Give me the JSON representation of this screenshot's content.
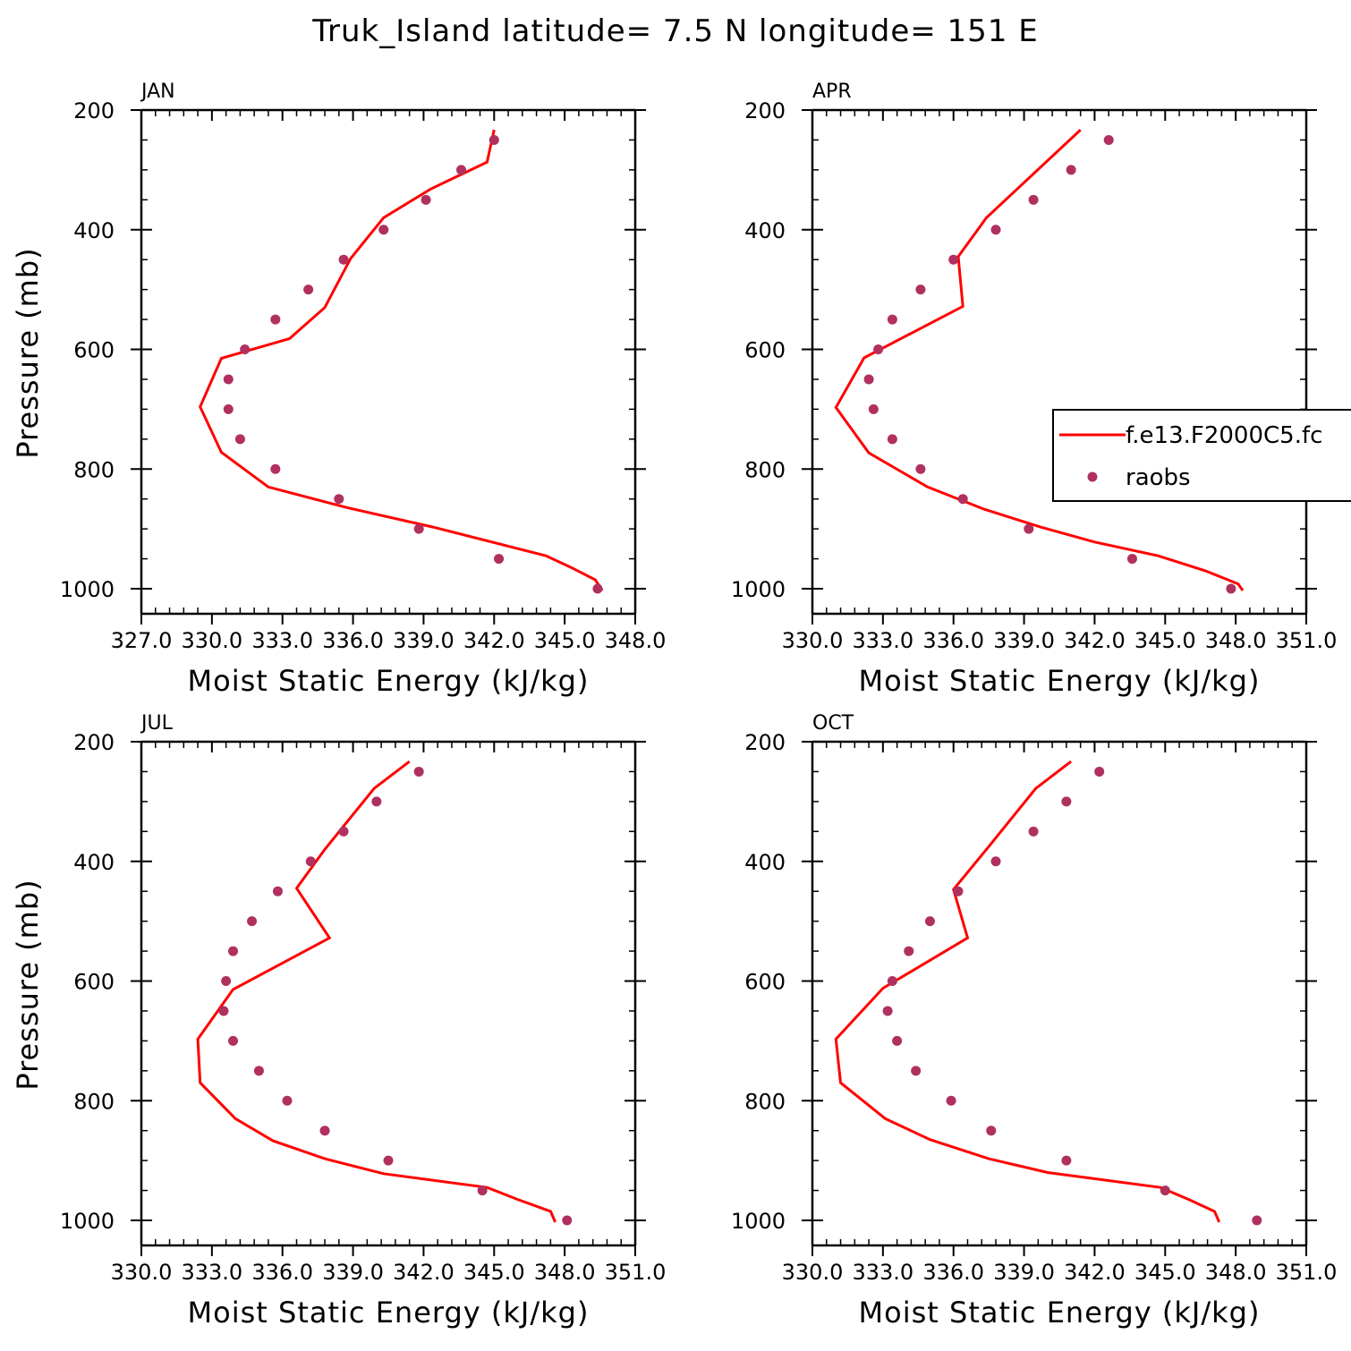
{
  "title": "Truk_Island  latitude= 7.5 N longitude= 151 E",
  "colors": {
    "model": "#ff0000",
    "obs": "#b03060",
    "axis": "#000000"
  },
  "legend": {
    "placement": "right-middle (inside APR panel, clipped)",
    "entries": [
      {
        "label": "f.e13.F2000C5.fc",
        "style": "line",
        "color": "#ff0000"
      },
      {
        "label": "raobs",
        "style": "marker",
        "color": "#b03060"
      }
    ]
  },
  "chart_data": [
    {
      "type": "line",
      "title": "JAN",
      "xlabel": "Moist Static Energy (kJ/kg)",
      "ylabel": "Pressure (mb)",
      "xlim": [
        327.0,
        348.0
      ],
      "ylim": [
        200,
        1000
      ],
      "y_inverted": true,
      "xticks": [
        327.0,
        330.0,
        333.0,
        336.0,
        339.0,
        342.0,
        345.0,
        348.0
      ],
      "xticklabels": [
        "327.0",
        "330.0",
        "333.0",
        "336.0",
        "339.0",
        "342.0",
        "345.0",
        "348.0"
      ],
      "yticks": [
        200,
        400,
        600,
        800,
        1000
      ],
      "yticklabels": [
        "200",
        "400",
        "600",
        "800",
        "1000"
      ],
      "series": [
        {
          "name": "f.e13.F2000C5.fc",
          "style": "line",
          "x": [
            342.0,
            341.7,
            339.3,
            337.3,
            335.9,
            334.8,
            333.3,
            330.4,
            329.5,
            330.4,
            332.4,
            335.8,
            339.4,
            344.2,
            345.3,
            346.3,
            346.6
          ],
          "y": [
            233,
            287,
            332,
            380,
            448,
            530,
            582,
            615,
            696,
            772,
            830,
            865,
            897,
            945,
            965,
            985,
            1003
          ]
        },
        {
          "name": "raobs",
          "style": "scatter",
          "x": [
            342.0,
            340.6,
            339.1,
            337.3,
            335.6,
            334.1,
            332.7,
            331.4,
            330.7,
            330.7,
            331.2,
            332.7,
            335.4,
            338.8,
            342.2,
            346.4
          ],
          "y": [
            250,
            300,
            350,
            400,
            450,
            500,
            550,
            600,
            650,
            700,
            750,
            800,
            850,
            900,
            950,
            1000
          ]
        }
      ]
    },
    {
      "type": "line",
      "title": "APR",
      "xlabel": "Moist Static Energy (kJ/kg)",
      "ylabel": "",
      "xlim": [
        330.0,
        351.0
      ],
      "ylim": [
        200,
        1000
      ],
      "y_inverted": true,
      "xticks": [
        330.0,
        333.0,
        336.0,
        339.0,
        342.0,
        345.0,
        348.0,
        351.0
      ],
      "xticklabels": [
        "330.0",
        "333.0",
        "336.0",
        "339.0",
        "342.0",
        "345.0",
        "348.0",
        "351.0"
      ],
      "yticks": [
        200,
        400,
        600,
        800,
        1000
      ],
      "yticklabels": [
        "200",
        "400",
        "600",
        "800",
        "1000"
      ],
      "series": [
        {
          "name": "f.e13.F2000C5.fc",
          "style": "line",
          "x": [
            341.4,
            337.4,
            336.2,
            336.4,
            332.2,
            331.0,
            332.4,
            334.9,
            337.3,
            339.7,
            342.0,
            344.7,
            346.7,
            348.1,
            348.3
          ],
          "y": [
            233,
            380,
            445,
            528,
            614,
            697,
            773,
            830,
            867,
            897,
            922,
            945,
            970,
            992,
            1003
          ]
        },
        {
          "name": "raobs",
          "style": "scatter",
          "x": [
            342.6,
            341.0,
            339.4,
            337.8,
            336.0,
            334.6,
            333.4,
            332.8,
            332.4,
            332.6,
            333.4,
            334.6,
            336.4,
            339.2,
            343.6,
            347.8
          ],
          "y": [
            250,
            300,
            350,
            400,
            450,
            500,
            550,
            600,
            650,
            700,
            750,
            800,
            850,
            900,
            950,
            1000
          ]
        }
      ]
    },
    {
      "type": "line",
      "title": "JUL",
      "xlabel": "Moist Static Energy (kJ/kg)",
      "ylabel": "Pressure (mb)",
      "xlim": [
        330.0,
        351.0
      ],
      "ylim": [
        200,
        1000
      ],
      "y_inverted": true,
      "xticks": [
        330.0,
        333.0,
        336.0,
        339.0,
        342.0,
        345.0,
        348.0,
        351.0
      ],
      "xticklabels": [
        "330.0",
        "333.0",
        "336.0",
        "339.0",
        "342.0",
        "345.0",
        "348.0",
        "351.0"
      ],
      "yticks": [
        200,
        400,
        600,
        800,
        1000
      ],
      "yticklabels": [
        "200",
        "400",
        "600",
        "800",
        "1000"
      ],
      "series": [
        {
          "name": "f.e13.F2000C5.fc",
          "style": "line",
          "x": [
            341.4,
            339.9,
            337.8,
            336.6,
            338.0,
            333.9,
            332.4,
            332.5,
            334.0,
            335.6,
            337.8,
            340.3,
            344.7,
            346.0,
            347.4,
            347.6
          ],
          "y": [
            233,
            278,
            380,
            445,
            528,
            614,
            697,
            770,
            830,
            867,
            897,
            922,
            945,
            965,
            985,
            1003
          ]
        },
        {
          "name": "raobs",
          "style": "scatter",
          "x": [
            341.8,
            340.0,
            338.6,
            337.2,
            335.8,
            334.7,
            333.9,
            333.6,
            333.5,
            333.9,
            335.0,
            336.2,
            337.8,
            340.5,
            344.5,
            348.1
          ],
          "y": [
            250,
            300,
            350,
            400,
            450,
            500,
            550,
            600,
            650,
            700,
            750,
            800,
            850,
            900,
            950,
            1000
          ]
        }
      ]
    },
    {
      "type": "line",
      "title": "OCT",
      "xlabel": "Moist Static Energy (kJ/kg)",
      "ylabel": "",
      "xlim": [
        330.0,
        351.0
      ],
      "ylim": [
        200,
        1000
      ],
      "y_inverted": true,
      "xticks": [
        330.0,
        333.0,
        336.0,
        339.0,
        342.0,
        345.0,
        348.0,
        351.0
      ],
      "xticklabels": [
        "330.0",
        "333.0",
        "336.0",
        "339.0",
        "342.0",
        "345.0",
        "348.0",
        "351.0"
      ],
      "yticks": [
        200,
        400,
        600,
        800,
        1000
      ],
      "yticklabels": [
        "200",
        "400",
        "600",
        "800",
        "1000"
      ],
      "series": [
        {
          "name": "f.e13.F2000C5.fc",
          "style": "line",
          "x": [
            341.0,
            339.5,
            337.4,
            336.0,
            336.6,
            333.0,
            331.0,
            331.2,
            333.1,
            335.0,
            337.5,
            340.0,
            344.8,
            346.0,
            347.1,
            347.3
          ],
          "y": [
            233,
            278,
            380,
            447,
            528,
            612,
            697,
            770,
            830,
            865,
            897,
            920,
            945,
            965,
            985,
            1003
          ]
        },
        {
          "name": "raobs",
          "style": "scatter",
          "x": [
            342.2,
            340.8,
            339.4,
            337.8,
            336.2,
            335.0,
            334.1,
            333.4,
            333.2,
            333.6,
            334.4,
            335.9,
            337.6,
            340.8,
            345.0,
            348.9
          ],
          "y": [
            250,
            300,
            350,
            400,
            450,
            500,
            550,
            600,
            650,
            700,
            750,
            800,
            850,
            900,
            950,
            1000
          ]
        }
      ]
    }
  ]
}
